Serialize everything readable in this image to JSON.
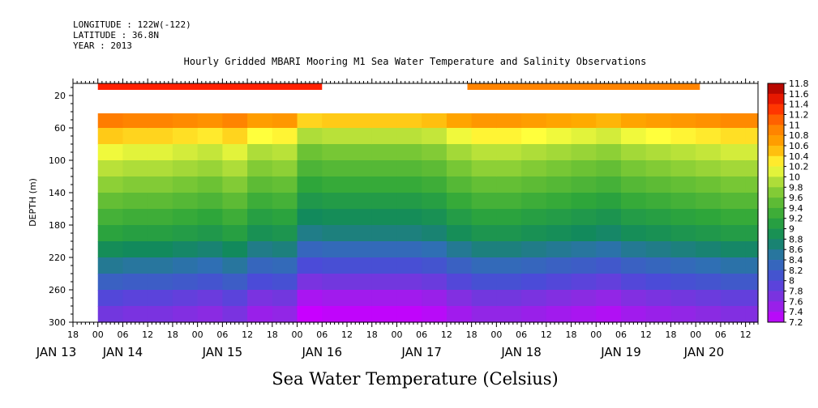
{
  "header": {
    "meta_lines": [
      "LONGITUDE : 122W(-122)",
      "LATITUDE : 36.8N",
      "YEAR : 2013"
    ],
    "title": "Hourly Gridded MBARI Mooring M1 Sea Water Temperature and Salinity Observations"
  },
  "chart_data": {
    "type": "heatmap",
    "title": "Hourly Gridded MBARI Mooring M1 Sea Water Temperature and Salinity Observations",
    "xlabel": "Sea Water Temperature (Celsius)",
    "ylabel": "DEPTH (m)",
    "y_inverted": true,
    "ylim": [
      300,
      5
    ],
    "y_ticks": [
      20,
      60,
      100,
      140,
      180,
      220,
      260,
      300
    ],
    "x_range_hours": [
      -6,
      159
    ],
    "x_hour_ticks": [
      {
        "h": -6,
        "label": "18"
      },
      {
        "h": 0,
        "label": "00"
      },
      {
        "h": 6,
        "label": "06"
      },
      {
        "h": 12,
        "label": "12"
      },
      {
        "h": 18,
        "label": "18"
      },
      {
        "h": 24,
        "label": "00"
      },
      {
        "h": 30,
        "label": "06"
      },
      {
        "h": 36,
        "label": "12"
      },
      {
        "h": 42,
        "label": "18"
      },
      {
        "h": 48,
        "label": "00"
      },
      {
        "h": 54,
        "label": "06"
      },
      {
        "h": 60,
        "label": "12"
      },
      {
        "h": 66,
        "label": "18"
      },
      {
        "h": 72,
        "label": "00"
      },
      {
        "h": 78,
        "label": "06"
      },
      {
        "h": 84,
        "label": "12"
      },
      {
        "h": 90,
        "label": "18"
      },
      {
        "h": 96,
        "label": "00"
      },
      {
        "h": 102,
        "label": "06"
      },
      {
        "h": 108,
        "label": "12"
      },
      {
        "h": 114,
        "label": "18"
      },
      {
        "h": 120,
        "label": "00"
      },
      {
        "h": 126,
        "label": "06"
      },
      {
        "h": 132,
        "label": "12"
      },
      {
        "h": 138,
        "label": "18"
      },
      {
        "h": 144,
        "label": "00"
      },
      {
        "h": 150,
        "label": "06"
      },
      {
        "h": 156,
        "label": "12"
      }
    ],
    "x_day_labels": [
      {
        "h": -10,
        "label": "JAN 13"
      },
      {
        "h": 6,
        "label": "JAN 14"
      },
      {
        "h": 30,
        "label": "JAN 15"
      },
      {
        "h": 54,
        "label": "JAN 16"
      },
      {
        "h": 78,
        "label": "JAN 17"
      },
      {
        "h": 102,
        "label": "JAN 18"
      },
      {
        "h": 126,
        "label": "JAN 19"
      },
      {
        "h": 146,
        "label": "JAN 20"
      }
    ],
    "colorbar": {
      "min": 7.2,
      "max": 11.8,
      "step": 0.2,
      "labels": [
        "11.8",
        "11.6",
        "11.4",
        "11.2",
        "11",
        "10.8",
        "10.6",
        "10.4",
        "10.2",
        "10",
        "9.8",
        "9.6",
        "9.4",
        "9.2",
        "9",
        "8.8",
        "8.6",
        "8.4",
        "8.2",
        "8",
        "7.8",
        "7.6",
        "7.4",
        "7.2"
      ]
    },
    "near_surface_band": {
      "depth_range": [
        5,
        13
      ],
      "segments": [
        {
          "h_start": 0,
          "h_end": 54,
          "value": 11.4
        },
        {
          "h_start": 89,
          "h_end": 145,
          "value": 10.9
        },
        {
          "h_start": 159,
          "h_end": 160,
          "value": 10.8
        }
      ]
    },
    "field": {
      "data_depth_start": 42,
      "depth_bounds": [
        42,
        60,
        80,
        100,
        120,
        140,
        160,
        180,
        200,
        220,
        240,
        260,
        280,
        300
      ],
      "time_hours": [
        0,
        6,
        12,
        18,
        24,
        30,
        36,
        42,
        48,
        54,
        60,
        66,
        72,
        78,
        84,
        90,
        96,
        102,
        108,
        114,
        120,
        126,
        132,
        138,
        144,
        150,
        156,
        159
      ],
      "temperature_profile": [
        10.6,
        10.1,
        9.8,
        9.6,
        9.4,
        9.2,
        9.0,
        8.8,
        8.5,
        8.2,
        7.9,
        7.6,
        7.4
      ],
      "time_anomaly": [
        0.35,
        0.3,
        0.3,
        0.25,
        0.2,
        0.3,
        0.1,
        0.15,
        -0.2,
        -0.15,
        -0.15,
        -0.15,
        -0.15,
        -0.1,
        0.05,
        0.15,
        0.15,
        0.1,
        0.05,
        0.0,
        -0.05,
        0.05,
        0.1,
        0.15,
        0.2,
        0.25,
        0.25,
        0.3
      ]
    }
  }
}
